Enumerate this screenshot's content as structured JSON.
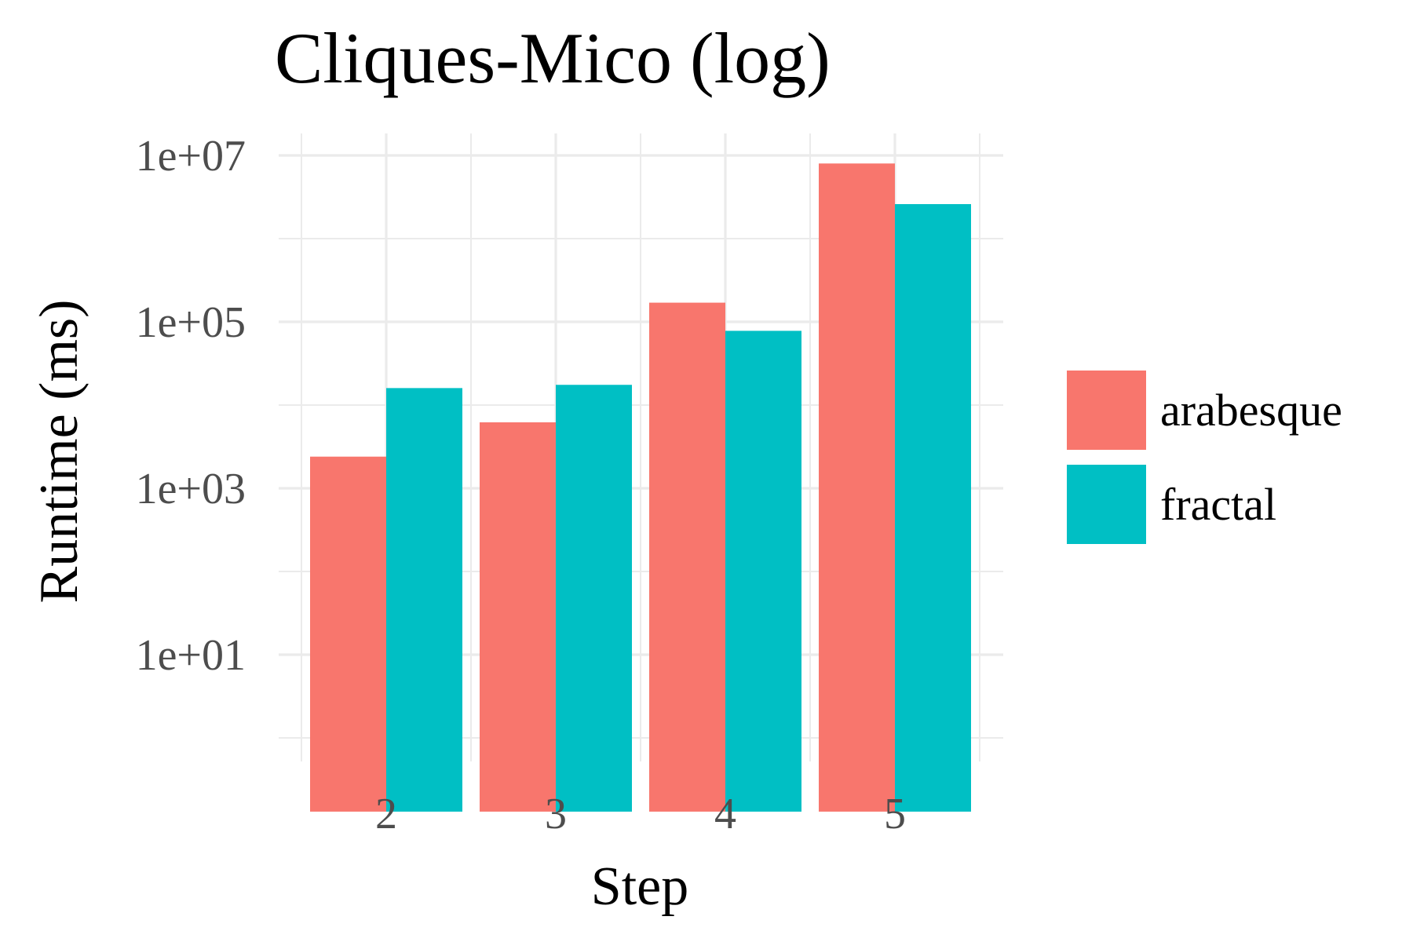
{
  "chart_data": {
    "type": "bar",
    "title": "Cliques-Mico (log)",
    "xlabel": "Step",
    "ylabel": "Runtime (ms)",
    "y_scale": "log10",
    "ylim": [
      1,
      10000000
    ],
    "y_ticks": [
      10,
      1000,
      100000,
      10000000
    ],
    "y_tick_labels": [
      "1e+01",
      "1e+03",
      "1e+05",
      "1e+07"
    ],
    "categories": [
      "2",
      "3",
      "4",
      "5"
    ],
    "series": [
      {
        "name": "arabesque",
        "color": "#F8766D",
        "values": [
          2400,
          6200,
          170000,
          8000000
        ]
      },
      {
        "name": "fractal",
        "color": "#00BFC4",
        "values": [
          16000,
          17500,
          78000,
          2600000
        ]
      }
    ],
    "grid": true,
    "legend_position": "right"
  }
}
